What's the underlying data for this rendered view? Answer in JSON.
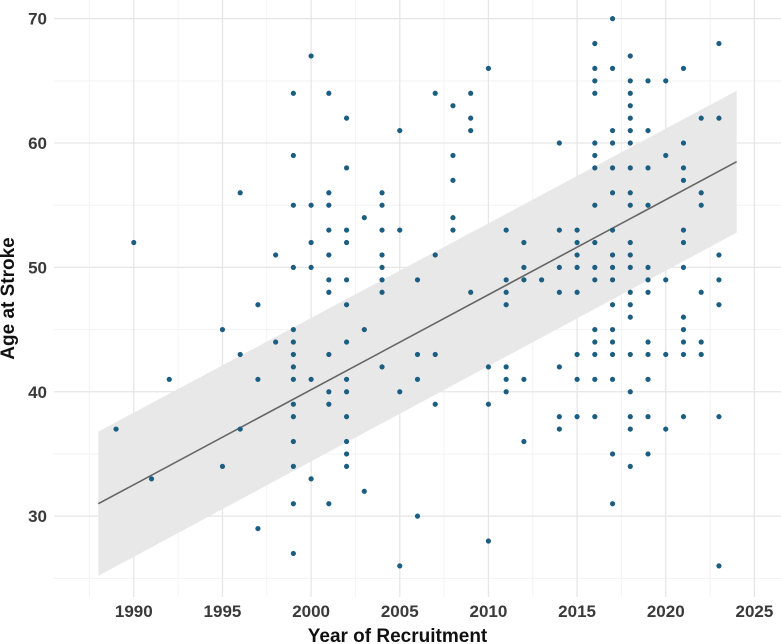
{
  "chart_data": {
    "type": "scatter",
    "title": "",
    "xlabel": "Year of Recruitment",
    "ylabel": "Age at Stroke",
    "xlim": [
      1985.5,
      2026.5
    ],
    "ylim": [
      23.5,
      71.5
    ],
    "x_ticks": [
      1990,
      1995,
      2000,
      2005,
      2010,
      2015,
      2020,
      2025
    ],
    "y_ticks": [
      30,
      40,
      50,
      60,
      70
    ],
    "grid": true,
    "legend": "none",
    "colors": {
      "points": "#1b5e82",
      "trend_line": "#666666",
      "confidence_band": "#e8e8e8",
      "grid_major": "#e6e6e6",
      "grid_minor": "#f3f3f3"
    },
    "trend_line": {
      "x": [
        1988,
        2024
      ],
      "y": [
        31.0,
        58.5
      ]
    },
    "confidence_band": {
      "x": [
        1988,
        2024
      ],
      "lower": [
        25.2,
        52.8
      ],
      "upper": [
        36.8,
        64.2
      ]
    },
    "points": [
      [
        1989,
        37
      ],
      [
        1990,
        52
      ],
      [
        1991,
        33
      ],
      [
        1992,
        41
      ],
      [
        1995,
        45
      ],
      [
        1995,
        34
      ],
      [
        1996,
        56
      ],
      [
        1996,
        43
      ],
      [
        1996,
        37
      ],
      [
        1997,
        47
      ],
      [
        1997,
        41
      ],
      [
        1997,
        29
      ],
      [
        1998,
        51
      ],
      [
        1998,
        44
      ],
      [
        1999,
        64
      ],
      [
        1999,
        59
      ],
      [
        1999,
        55
      ],
      [
        1999,
        50
      ],
      [
        1999,
        45
      ],
      [
        1999,
        44
      ],
      [
        1999,
        43
      ],
      [
        1999,
        42
      ],
      [
        1999,
        41
      ],
      [
        1999,
        39
      ],
      [
        1999,
        38
      ],
      [
        1999,
        36
      ],
      [
        1999,
        34
      ],
      [
        1999,
        31
      ],
      [
        1999,
        27
      ],
      [
        2000,
        67
      ],
      [
        2000,
        55
      ],
      [
        2000,
        52
      ],
      [
        2000,
        50
      ],
      [
        2000,
        41
      ],
      [
        2000,
        33
      ],
      [
        2001,
        64
      ],
      [
        2001,
        56
      ],
      [
        2001,
        55
      ],
      [
        2001,
        53
      ],
      [
        2001,
        51
      ],
      [
        2001,
        49
      ],
      [
        2001,
        48
      ],
      [
        2001,
        43
      ],
      [
        2001,
        40
      ],
      [
        2001,
        39
      ],
      [
        2001,
        31
      ],
      [
        2002,
        62
      ],
      [
        2002,
        58
      ],
      [
        2002,
        53
      ],
      [
        2002,
        52
      ],
      [
        2002,
        49
      ],
      [
        2002,
        47
      ],
      [
        2002,
        44
      ],
      [
        2002,
        41
      ],
      [
        2002,
        40
      ],
      [
        2002,
        38
      ],
      [
        2002,
        36
      ],
      [
        2002,
        35
      ],
      [
        2002,
        34
      ],
      [
        2003,
        54
      ],
      [
        2003,
        45
      ],
      [
        2003,
        32
      ],
      [
        2004,
        56
      ],
      [
        2004,
        55
      ],
      [
        2004,
        53
      ],
      [
        2004,
        51
      ],
      [
        2004,
        50
      ],
      [
        2004,
        49
      ],
      [
        2004,
        48
      ],
      [
        2004,
        42
      ],
      [
        2005,
        61
      ],
      [
        2005,
        53
      ],
      [
        2005,
        40
      ],
      [
        2005,
        26
      ],
      [
        2006,
        49
      ],
      [
        2006,
        43
      ],
      [
        2006,
        41
      ],
      [
        2006,
        30
      ],
      [
        2007,
        64
      ],
      [
        2007,
        51
      ],
      [
        2007,
        43
      ],
      [
        2007,
        39
      ],
      [
        2008,
        63
      ],
      [
        2008,
        59
      ],
      [
        2008,
        57
      ],
      [
        2008,
        54
      ],
      [
        2008,
        53
      ],
      [
        2009,
        64
      ],
      [
        2009,
        62
      ],
      [
        2009,
        61
      ],
      [
        2009,
        48
      ],
      [
        2010,
        66
      ],
      [
        2010,
        42
      ],
      [
        2010,
        39
      ],
      [
        2010,
        28
      ],
      [
        2011,
        53
      ],
      [
        2011,
        49
      ],
      [
        2011,
        48
      ],
      [
        2011,
        47
      ],
      [
        2011,
        42
      ],
      [
        2011,
        41
      ],
      [
        2011,
        40
      ],
      [
        2012,
        52
      ],
      [
        2012,
        50
      ],
      [
        2012,
        49
      ],
      [
        2012,
        41
      ],
      [
        2012,
        36
      ],
      [
        2013,
        49
      ],
      [
        2014,
        60
      ],
      [
        2014,
        53
      ],
      [
        2014,
        50
      ],
      [
        2014,
        48
      ],
      [
        2014,
        42
      ],
      [
        2014,
        38
      ],
      [
        2014,
        37
      ],
      [
        2015,
        53
      ],
      [
        2015,
        52
      ],
      [
        2015,
        51
      ],
      [
        2015,
        50
      ],
      [
        2015,
        48
      ],
      [
        2015,
        43
      ],
      [
        2015,
        41
      ],
      [
        2015,
        38
      ],
      [
        2016,
        68
      ],
      [
        2016,
        66
      ],
      [
        2016,
        65
      ],
      [
        2016,
        64
      ],
      [
        2016,
        60
      ],
      [
        2016,
        59
      ],
      [
        2016,
        58
      ],
      [
        2016,
        55
      ],
      [
        2016,
        52
      ],
      [
        2016,
        50
      ],
      [
        2016,
        49
      ],
      [
        2016,
        45
      ],
      [
        2016,
        44
      ],
      [
        2016,
        43
      ],
      [
        2016,
        41
      ],
      [
        2016,
        38
      ],
      [
        2017,
        70
      ],
      [
        2017,
        66
      ],
      [
        2017,
        61
      ],
      [
        2017,
        60
      ],
      [
        2017,
        58
      ],
      [
        2017,
        56
      ],
      [
        2017,
        53
      ],
      [
        2017,
        51
      ],
      [
        2017,
        50
      ],
      [
        2017,
        49
      ],
      [
        2017,
        47
      ],
      [
        2017,
        45
      ],
      [
        2017,
        44
      ],
      [
        2017,
        43
      ],
      [
        2017,
        41
      ],
      [
        2017,
        35
      ],
      [
        2017,
        31
      ],
      [
        2018,
        67
      ],
      [
        2018,
        65
      ],
      [
        2018,
        64
      ],
      [
        2018,
        63
      ],
      [
        2018,
        62
      ],
      [
        2018,
        61
      ],
      [
        2018,
        60
      ],
      [
        2018,
        58
      ],
      [
        2018,
        56
      ],
      [
        2018,
        55
      ],
      [
        2018,
        52
      ],
      [
        2018,
        51
      ],
      [
        2018,
        50
      ],
      [
        2018,
        48
      ],
      [
        2018,
        47
      ],
      [
        2018,
        46
      ],
      [
        2018,
        43
      ],
      [
        2018,
        40
      ],
      [
        2018,
        38
      ],
      [
        2018,
        37
      ],
      [
        2018,
        34
      ],
      [
        2019,
        65
      ],
      [
        2019,
        61
      ],
      [
        2019,
        58
      ],
      [
        2019,
        55
      ],
      [
        2019,
        50
      ],
      [
        2019,
        49
      ],
      [
        2019,
        48
      ],
      [
        2019,
        44
      ],
      [
        2019,
        43
      ],
      [
        2019,
        41
      ],
      [
        2019,
        38
      ],
      [
        2019,
        35
      ],
      [
        2020,
        65
      ],
      [
        2020,
        59
      ],
      [
        2020,
        49
      ],
      [
        2020,
        43
      ],
      [
        2020,
        37
      ],
      [
        2021,
        66
      ],
      [
        2021,
        60
      ],
      [
        2021,
        58
      ],
      [
        2021,
        57
      ],
      [
        2021,
        53
      ],
      [
        2021,
        52
      ],
      [
        2021,
        50
      ],
      [
        2021,
        46
      ],
      [
        2021,
        45
      ],
      [
        2021,
        44
      ],
      [
        2021,
        43
      ],
      [
        2021,
        38
      ],
      [
        2022,
        62
      ],
      [
        2022,
        56
      ],
      [
        2022,
        55
      ],
      [
        2022,
        48
      ],
      [
        2022,
        44
      ],
      [
        2022,
        43
      ],
      [
        2023,
        68
      ],
      [
        2023,
        62
      ],
      [
        2023,
        51
      ],
      [
        2023,
        49
      ],
      [
        2023,
        47
      ],
      [
        2023,
        38
      ],
      [
        2023,
        26
      ]
    ]
  }
}
